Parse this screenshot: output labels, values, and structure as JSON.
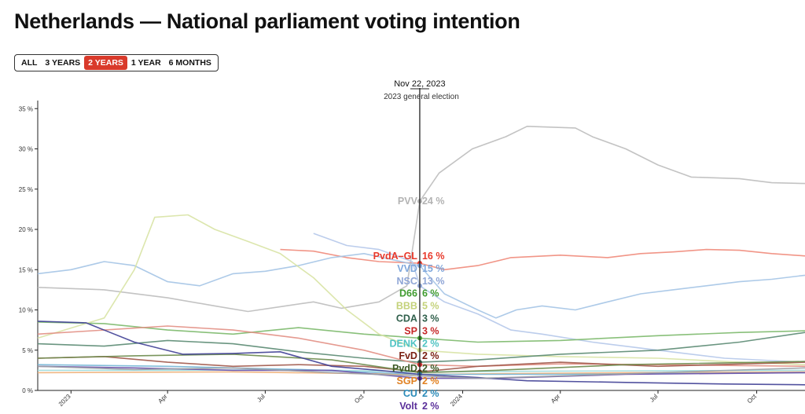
{
  "title": "Netherlands — National parliament voting intention",
  "range_tabs": [
    {
      "label": "ALL",
      "active": false
    },
    {
      "label": "3 YEARS",
      "active": false
    },
    {
      "label": "2 YEARS",
      "active": true
    },
    {
      "label": "1 YEAR",
      "active": false
    },
    {
      "label": "6 MONTHS",
      "active": false
    }
  ],
  "accent_color": "#d93a2b",
  "chart_data": {
    "type": "line",
    "x_domain": [
      "2022-12-01",
      "2024-11-15"
    ],
    "ylim": [
      0,
      36
    ],
    "y_ticks": [
      0,
      5,
      10,
      15,
      20,
      25,
      30,
      35
    ],
    "y_tick_labels": [
      "0 %",
      "5 %",
      "10 %",
      "15 %",
      "20 %",
      "25 %",
      "30 %",
      "35 %"
    ],
    "x_ticks": [
      {
        "date": "2023-01-01",
        "label": "2023"
      },
      {
        "date": "2023-04-01",
        "label": "Apr"
      },
      {
        "date": "2023-07-01",
        "label": "Jul"
      },
      {
        "date": "2023-10-01",
        "label": "Oct"
      },
      {
        "date": "2024-01-01",
        "label": "2024"
      },
      {
        "date": "2024-04-01",
        "label": "Apr"
      },
      {
        "date": "2024-07-01",
        "label": "Jul"
      },
      {
        "date": "2024-10-01",
        "label": "Oct"
      }
    ],
    "grid": false,
    "event": {
      "date": "2023-11-22",
      "date_label": "Nov 22, 2023",
      "description": "2023 general election"
    },
    "series": [
      {
        "name": "PVV",
        "label": "24 %",
        "color": "#bdbdbd",
        "label_color": "#b3b3b3",
        "points": [
          [
            "2022-12-01",
            12.8
          ],
          [
            "2023-02-01",
            12.5
          ],
          [
            "2023-04-01",
            11.5
          ],
          [
            "2023-05-15",
            10.5
          ],
          [
            "2023-06-15",
            9.8
          ],
          [
            "2023-07-20",
            10.5
          ],
          [
            "2023-08-15",
            11
          ],
          [
            "2023-09-10",
            10.2
          ],
          [
            "2023-10-15",
            11
          ],
          [
            "2023-11-10",
            13
          ],
          [
            "2023-11-22",
            23.5
          ],
          [
            "2023-12-10",
            27
          ],
          [
            "2024-01-10",
            30
          ],
          [
            "2024-02-10",
            31.5
          ],
          [
            "2024-03-01",
            32.8
          ],
          [
            "2024-04-15",
            32.6
          ],
          [
            "2024-05-01",
            31.5
          ],
          [
            "2024-06-01",
            30
          ],
          [
            "2024-07-01",
            28
          ],
          [
            "2024-08-01",
            26.5
          ],
          [
            "2024-09-15",
            26.3
          ],
          [
            "2024-10-15",
            25.8
          ],
          [
            "2024-11-15",
            25.7
          ]
        ]
      },
      {
        "name": "PvdA–GL",
        "label": "16 %",
        "color": "#f08a7a",
        "label_color": "#e8392b",
        "points": [
          [
            "2023-07-15",
            17.5
          ],
          [
            "2023-08-15",
            17.3
          ],
          [
            "2023-09-15",
            16.5
          ],
          [
            "2023-10-15",
            16
          ],
          [
            "2023-11-22",
            15.8
          ],
          [
            "2023-12-15",
            15
          ],
          [
            "2024-01-15",
            15.5
          ],
          [
            "2024-02-15",
            16.5
          ],
          [
            "2024-04-01",
            16.8
          ],
          [
            "2024-05-15",
            16.5
          ],
          [
            "2024-06-15",
            17
          ],
          [
            "2024-07-15",
            17.2
          ],
          [
            "2024-08-15",
            17.5
          ],
          [
            "2024-09-15",
            17.4
          ],
          [
            "2024-10-15",
            17
          ],
          [
            "2024-11-15",
            16.7
          ]
        ]
      },
      {
        "name": "VVD",
        "label": "15 %",
        "color": "#a4c4e6",
        "label_color": "#7fa7dc",
        "points": [
          [
            "2022-12-01",
            14.5
          ],
          [
            "2023-01-01",
            15
          ],
          [
            "2023-02-01",
            16
          ],
          [
            "2023-03-01",
            15.5
          ],
          [
            "2023-04-01",
            13.5
          ],
          [
            "2023-05-01",
            13
          ],
          [
            "2023-06-01",
            14.5
          ],
          [
            "2023-07-01",
            14.8
          ],
          [
            "2023-08-01",
            15.5
          ],
          [
            "2023-09-01",
            16.5
          ],
          [
            "2023-10-01",
            17
          ],
          [
            "2023-11-22",
            15.5
          ],
          [
            "2023-12-15",
            12
          ],
          [
            "2024-01-15",
            10
          ],
          [
            "2024-02-01",
            9
          ],
          [
            "2024-02-20",
            10
          ],
          [
            "2024-03-15",
            10.5
          ],
          [
            "2024-04-15",
            10
          ],
          [
            "2024-05-15",
            11
          ],
          [
            "2024-06-15",
            12
          ],
          [
            "2024-07-15",
            12.5
          ],
          [
            "2024-08-15",
            13
          ],
          [
            "2024-09-15",
            13.5
          ],
          [
            "2024-10-15",
            13.8
          ],
          [
            "2024-11-15",
            14.3
          ]
        ]
      },
      {
        "name": "NSC",
        "label": "13 %",
        "color": "#b5c8ea",
        "label_color": "#8fa6d6",
        "points": [
          [
            "2023-08-15",
            19.5
          ],
          [
            "2023-09-15",
            18
          ],
          [
            "2023-10-15",
            17.5
          ],
          [
            "2023-11-15",
            16
          ],
          [
            "2023-11-22",
            13
          ],
          [
            "2023-12-15",
            11
          ],
          [
            "2024-01-15",
            9.5
          ],
          [
            "2024-02-15",
            7.5
          ],
          [
            "2024-03-15",
            7
          ],
          [
            "2024-05-01",
            6
          ],
          [
            "2024-07-01",
            5
          ],
          [
            "2024-09-01",
            4
          ],
          [
            "2024-11-15",
            3.5
          ]
        ]
      },
      {
        "name": "D66",
        "label": "6 %",
        "color": "#7cb96b",
        "label_color": "#3f9b2f",
        "points": [
          [
            "2022-12-01",
            8.5
          ],
          [
            "2023-02-01",
            8.3
          ],
          [
            "2023-04-01",
            7.5
          ],
          [
            "2023-06-01",
            7
          ],
          [
            "2023-08-01",
            7.8
          ],
          [
            "2023-10-01",
            7
          ],
          [
            "2023-11-22",
            6.5
          ],
          [
            "2024-01-15",
            6
          ],
          [
            "2024-04-01",
            6.2
          ],
          [
            "2024-07-01",
            6.8
          ],
          [
            "2024-09-15",
            7.2
          ],
          [
            "2024-11-15",
            7.4
          ]
        ]
      },
      {
        "name": "BBB",
        "label": "5 %",
        "color": "#d8e3a4",
        "label_color": "#c4d27a",
        "points": [
          [
            "2022-12-01",
            6.5
          ],
          [
            "2023-02-01",
            9
          ],
          [
            "2023-03-01",
            15
          ],
          [
            "2023-03-20",
            21.5
          ],
          [
            "2023-04-20",
            21.8
          ],
          [
            "2023-05-15",
            20
          ],
          [
            "2023-06-15",
            18.5
          ],
          [
            "2023-07-15",
            17
          ],
          [
            "2023-08-15",
            14
          ],
          [
            "2023-09-15",
            10
          ],
          [
            "2023-10-15",
            7
          ],
          [
            "2023-11-22",
            5
          ],
          [
            "2024-01-15",
            4.5
          ],
          [
            "2024-04-01",
            4.2
          ],
          [
            "2024-07-01",
            4
          ],
          [
            "2024-09-15",
            3.5
          ],
          [
            "2024-11-15",
            3.2
          ]
        ]
      },
      {
        "name": "CDA",
        "label": "3 %",
        "color": "#5a8a72",
        "label_color": "#2f5f4b",
        "points": [
          [
            "2022-12-01",
            5.8
          ],
          [
            "2023-02-01",
            5.5
          ],
          [
            "2023-04-01",
            6.2
          ],
          [
            "2023-06-01",
            5.8
          ],
          [
            "2023-08-01",
            4.8
          ],
          [
            "2023-10-01",
            4
          ],
          [
            "2023-11-22",
            3.5
          ],
          [
            "2024-01-15",
            3.8
          ],
          [
            "2024-04-01",
            4.5
          ],
          [
            "2024-07-01",
            5
          ],
          [
            "2024-09-15",
            6
          ],
          [
            "2024-11-15",
            7.2
          ]
        ]
      },
      {
        "name": "SP",
        "label": "3 %",
        "color": "#e28f84",
        "label_color": "#c62828",
        "points": [
          [
            "2022-12-01",
            7
          ],
          [
            "2023-02-01",
            7.5
          ],
          [
            "2023-04-01",
            8
          ],
          [
            "2023-06-01",
            7.5
          ],
          [
            "2023-08-01",
            6.5
          ],
          [
            "2023-10-01",
            5
          ],
          [
            "2023-11-22",
            3.2
          ],
          [
            "2024-01-15",
            3
          ],
          [
            "2024-04-01",
            3.3
          ],
          [
            "2024-07-01",
            3.2
          ],
          [
            "2024-11-15",
            3
          ]
        ]
      },
      {
        "name": "DENK",
        "label": "2 %",
        "color": "#9fdcdc",
        "label_color": "#4fc3c3",
        "points": [
          [
            "2022-12-01",
            2.5
          ],
          [
            "2023-04-01",
            2.5
          ],
          [
            "2023-08-01",
            2.6
          ],
          [
            "2023-11-22",
            2.3
          ],
          [
            "2024-04-01",
            2.4
          ],
          [
            "2024-11-15",
            2.5
          ]
        ]
      },
      {
        "name": "FvD",
        "label": "2 %",
        "color": "#a0584a",
        "label_color": "#7a1f12",
        "points": [
          [
            "2022-12-01",
            4
          ],
          [
            "2023-02-01",
            4.2
          ],
          [
            "2023-04-01",
            3.5
          ],
          [
            "2023-06-01",
            3
          ],
          [
            "2023-08-01",
            3.2
          ],
          [
            "2023-10-01",
            3
          ],
          [
            "2023-11-22",
            2.3
          ],
          [
            "2024-01-15",
            3
          ],
          [
            "2024-04-01",
            3.5
          ],
          [
            "2024-07-01",
            3
          ],
          [
            "2024-11-15",
            3.5
          ]
        ]
      },
      {
        "name": "PvdD",
        "label": "2 %",
        "color": "#6a8a4a",
        "label_color": "#3d5a25",
        "points": [
          [
            "2022-12-01",
            4
          ],
          [
            "2023-03-01",
            4.3
          ],
          [
            "2023-06-01",
            4.5
          ],
          [
            "2023-09-01",
            3.8
          ],
          [
            "2023-11-22",
            2.2
          ],
          [
            "2024-02-01",
            2.5
          ],
          [
            "2024-06-01",
            3.2
          ],
          [
            "2024-11-15",
            3.6
          ]
        ]
      },
      {
        "name": "SGP",
        "label": "2 %",
        "color": "#f0b078",
        "label_color": "#e08020",
        "points": [
          [
            "2022-12-01",
            2.2
          ],
          [
            "2023-06-01",
            2.3
          ],
          [
            "2023-11-22",
            2
          ],
          [
            "2024-06-01",
            2.2
          ],
          [
            "2024-11-15",
            2.3
          ]
        ]
      },
      {
        "name": "CU",
        "label": "2 %",
        "color": "#74b6d6",
        "label_color": "#2a8ab8",
        "points": [
          [
            "2022-12-01",
            3.2
          ],
          [
            "2023-04-01",
            3
          ],
          [
            "2023-08-01",
            2.6
          ],
          [
            "2023-11-22",
            2
          ],
          [
            "2024-04-01",
            2
          ],
          [
            "2024-11-15",
            2.2
          ]
        ]
      },
      {
        "name": "Volt",
        "label": "2 %",
        "color": "#6a4fa8",
        "label_color": "#5a2f9a",
        "points": [
          [
            "2022-12-01",
            3
          ],
          [
            "2023-03-01",
            2.8
          ],
          [
            "2023-06-01",
            2.5
          ],
          [
            "2023-09-01",
            2.5
          ],
          [
            "2023-11-22",
            1.5
          ],
          [
            "2024-02-01",
            1.5
          ],
          [
            "2024-06-01",
            2
          ],
          [
            "2024-11-15",
            2.2
          ]
        ]
      },
      {
        "name": "",
        "label": "",
        "color": "#3f3f95",
        "label_color": "#3f3f95",
        "points": [
          [
            "2022-12-01",
            8.6
          ],
          [
            "2023-01-15",
            8.4
          ],
          [
            "2023-03-01",
            6
          ],
          [
            "2023-04-15",
            4.5
          ],
          [
            "2023-06-01",
            4.6
          ],
          [
            "2023-07-15",
            4.8
          ],
          [
            "2023-09-01",
            3
          ],
          [
            "2023-10-15",
            2.5
          ],
          [
            "2023-11-22",
            2
          ],
          [
            "2024-01-15",
            1.6
          ],
          [
            "2024-03-01",
            1.2
          ],
          [
            "2024-06-01",
            1
          ],
          [
            "2024-09-01",
            0.8
          ],
          [
            "2024-11-15",
            0.7
          ]
        ]
      },
      {
        "name": "",
        "label": "",
        "color": "#9aa0a6",
        "label_color": "#9aa0a6",
        "points": [
          [
            "2022-12-01",
            3
          ],
          [
            "2023-03-01",
            2.6
          ],
          [
            "2023-06-01",
            2.8
          ],
          [
            "2023-09-01",
            2.2
          ],
          [
            "2023-11-22",
            1.8
          ],
          [
            "2024-01-15",
            1.5
          ],
          [
            "2024-04-01",
            1.8
          ],
          [
            "2024-07-01",
            2.2
          ],
          [
            "2024-11-15",
            2.8
          ]
        ]
      }
    ],
    "label_order": [
      "PvdA–GL",
      "VVD",
      "NSC",
      "D66",
      "BBB",
      "CDA",
      "SP",
      "DENK",
      "FvD",
      "PvdD",
      "SGP",
      "CU",
      "Volt"
    ]
  }
}
